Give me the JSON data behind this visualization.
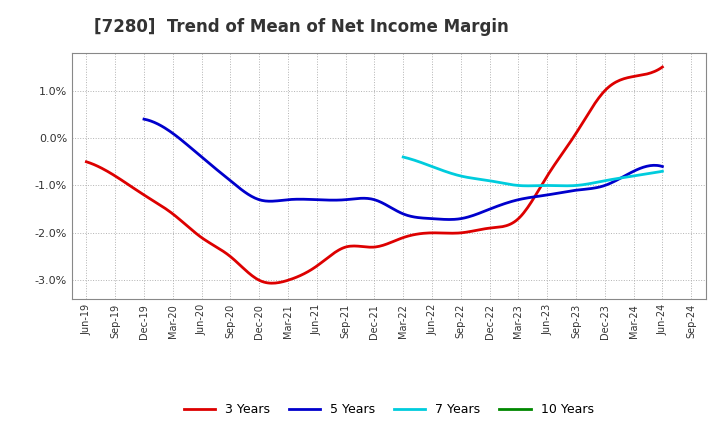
{
  "title": "[7280]  Trend of Mean of Net Income Margin",
  "xlabels": [
    "Jun-19",
    "Sep-19",
    "Dec-19",
    "Mar-20",
    "Jun-20",
    "Sep-20",
    "Dec-20",
    "Mar-21",
    "Jun-21",
    "Sep-21",
    "Dec-21",
    "Mar-22",
    "Jun-22",
    "Sep-22",
    "Dec-22",
    "Mar-23",
    "Jun-23",
    "Sep-23",
    "Dec-23",
    "Mar-24",
    "Jun-24",
    "Sep-24"
  ],
  "ylim": [
    -0.034,
    0.018
  ],
  "yticks": [
    -0.03,
    -0.02,
    -0.01,
    0.0,
    0.01
  ],
  "yticklabels": [
    "-3.0%",
    "-2.0%",
    "-1.0%",
    "0.0%",
    "1.0%"
  ],
  "series": {
    "3 Years": {
      "color": "#dd0000",
      "x": [
        0,
        1,
        2,
        3,
        4,
        5,
        6,
        7,
        8,
        9,
        10,
        11,
        12,
        13,
        14,
        15,
        16,
        17,
        18,
        19,
        20
      ],
      "y": [
        -0.005,
        -0.008,
        -0.012,
        -0.016,
        -0.021,
        -0.025,
        -0.03,
        -0.03,
        -0.027,
        -0.023,
        -0.023,
        -0.021,
        -0.02,
        -0.02,
        -0.019,
        -0.017,
        -0.008,
        0.001,
        0.01,
        0.013,
        0.015
      ]
    },
    "5 Years": {
      "color": "#0000cc",
      "x": [
        2,
        3,
        4,
        5,
        6,
        7,
        8,
        9,
        10,
        11,
        12,
        13,
        14,
        15,
        16,
        17,
        18,
        19,
        20
      ],
      "y": [
        0.004,
        0.001,
        -0.004,
        -0.009,
        -0.013,
        -0.013,
        -0.013,
        -0.013,
        -0.013,
        -0.016,
        -0.017,
        -0.017,
        -0.015,
        -0.013,
        -0.012,
        -0.011,
        -0.01,
        -0.007,
        -0.006
      ]
    },
    "7 Years": {
      "color": "#00ccdd",
      "x": [
        11,
        12,
        13,
        14,
        15,
        16,
        17,
        18,
        19,
        20
      ],
      "y": [
        -0.004,
        -0.006,
        -0.008,
        -0.009,
        -0.01,
        -0.01,
        -0.01,
        -0.009,
        -0.008,
        -0.007
      ]
    },
    "10 Years": {
      "color": "#008800",
      "x": [],
      "y": []
    }
  },
  "background_color": "#ffffff",
  "plot_bg_color": "#ffffff",
  "grid_color": "#aaaaaa",
  "title_fontsize": 12,
  "legend_colors": [
    "#dd0000",
    "#0000cc",
    "#00ccdd",
    "#008800"
  ],
  "legend_labels": [
    "3 Years",
    "5 Years",
    "7 Years",
    "10 Years"
  ]
}
